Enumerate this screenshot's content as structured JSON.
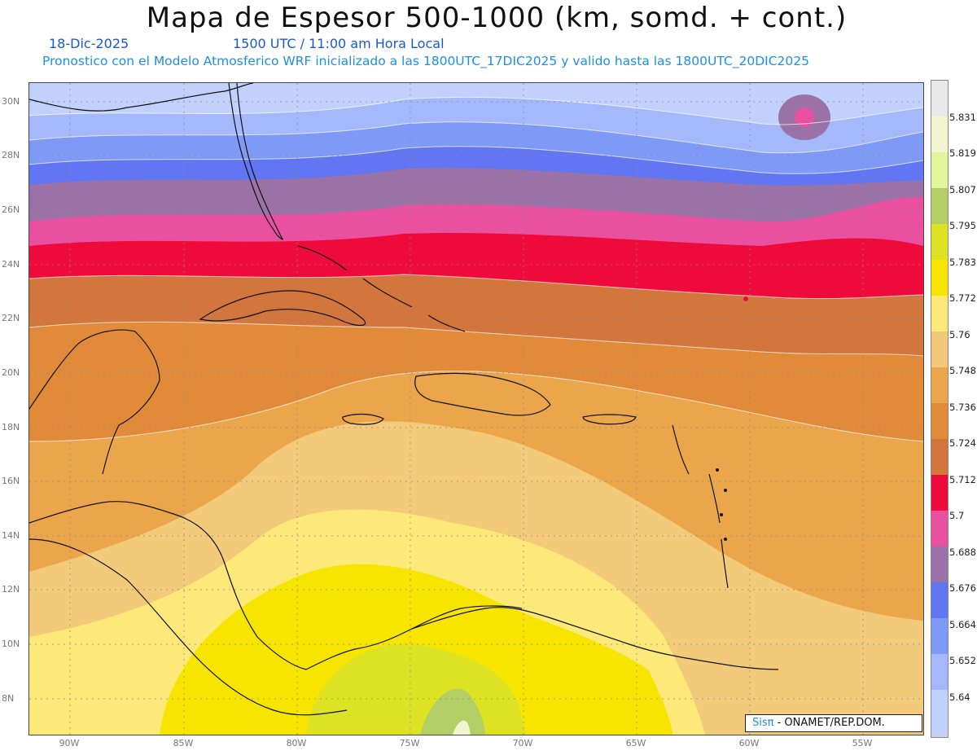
{
  "header": {
    "title": "Mapa de Espesor 500-1000 (km, somd. + cont.)",
    "date": "18-Dic-2025",
    "time": "1500 UTC / 11:00 am Hora Local",
    "forecast": "Pronostico con el Modelo Atmosferico WRF inicializado a las 1800UTC_17DIC2025 y valido hasta las  1800UTC_20DIC2025"
  },
  "map": {
    "latitude_labels": [
      "30N",
      "28N",
      "26N",
      "24N",
      "22N",
      "20N",
      "18N",
      "16N",
      "14N",
      "12N",
      "10N",
      "8N"
    ],
    "longitude_labels": [
      "90W",
      "85W",
      "80W",
      "75W",
      "70W",
      "65W",
      "60W",
      "55W"
    ],
    "gridlines": true,
    "coastlines": true
  },
  "legend": {
    "levels": [
      "5.831",
      "5.819",
      "5.807",
      "5.795",
      "5.783",
      "5.772",
      "5.76",
      "5.748",
      "5.736",
      "5.724",
      "5.712",
      "5.7",
      "5.688",
      "5.676",
      "5.664",
      "5.652",
      "5.64"
    ],
    "colors": [
      "#e8e8e8",
      "#f2f5d0",
      "#e3f59c",
      "#b4cf66",
      "#dde322",
      "#f7e500",
      "#fde87a",
      "#f2ca7a",
      "#eba54b",
      "#e18a3a",
      "#d2763e",
      "#ef0a3c",
      "#e9509f",
      "#9a72a8",
      "#6275f2",
      "#7f9af6",
      "#a4b8fb",
      "#c2d0fc"
    ]
  },
  "credit": {
    "sis": "Sisπ",
    "text": "- ONAMET/REP.DOM."
  }
}
